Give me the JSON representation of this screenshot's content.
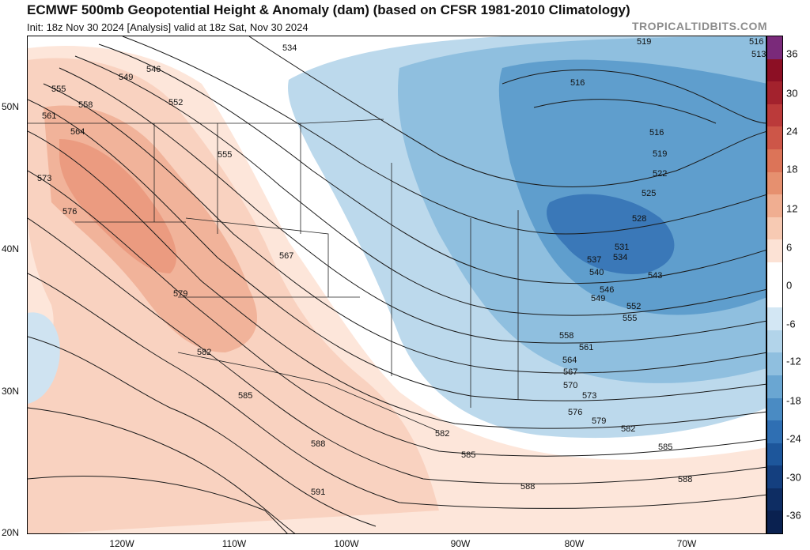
{
  "header": {
    "title": "ECMWF 500mb Geopotential Height & Anomaly (dam) (based on CFSR 1981-2010 Climatology)",
    "init_line": "Init: 18z Nov 30 2024   [Analysis]   valid at 18z Sat, Nov 30 2024",
    "site": "TROPICALTIDBITS.COM"
  },
  "axes": {
    "lat_labels": [
      "50N",
      "40N",
      "30N",
      "20N"
    ],
    "lon_labels": [
      "120W",
      "110W",
      "100W",
      "90W",
      "80W",
      "70W"
    ]
  },
  "colorbar": {
    "ticks": [
      "36",
      "30",
      "24",
      "18",
      "12",
      "6",
      "0",
      "-6",
      "-12",
      "-18",
      "-24",
      "-30",
      "-36"
    ],
    "colors": [
      "#7a2a7a",
      "#8c0f24",
      "#a3222d",
      "#bb3a3a",
      "#cd5648",
      "#dc7458",
      "#e6906f",
      "#f0ae91",
      "#f7cab3",
      "#fce2d5",
      "#ffffff",
      "#ffffff",
      "#d3e7f4",
      "#b2d4ea",
      "#8fbfdf",
      "#6aa6d2",
      "#4a8bc3",
      "#2f6fb3",
      "#1d569b",
      "#143f7f",
      "#0e2d63",
      "#0a2150"
    ]
  },
  "contours": [
    {
      "label": "534"
    },
    {
      "label": "546"
    },
    {
      "label": "549"
    },
    {
      "label": "552"
    },
    {
      "label": "555"
    },
    {
      "label": "558"
    },
    {
      "label": "561"
    },
    {
      "label": "564"
    },
    {
      "label": "567"
    },
    {
      "label": "570"
    },
    {
      "label": "573"
    },
    {
      "label": "576"
    },
    {
      "label": "579"
    },
    {
      "label": "582"
    },
    {
      "label": "585"
    },
    {
      "label": "588"
    },
    {
      "label": "591"
    },
    {
      "label": "516"
    },
    {
      "label": "519"
    },
    {
      "label": "513"
    },
    {
      "label": "522"
    },
    {
      "label": "525"
    },
    {
      "label": "528"
    },
    {
      "label": "531"
    },
    {
      "label": "537"
    },
    {
      "label": "540"
    },
    {
      "label": "543"
    }
  ]
}
